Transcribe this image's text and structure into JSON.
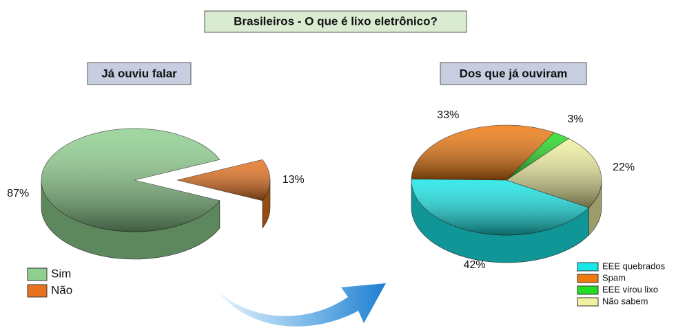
{
  "title": "Brasileiros -  O que é lixo eletrônico?",
  "chart_data": [
    {
      "type": "pie",
      "title": "Já ouviu falar",
      "categories": [
        "Sim",
        "Não"
      ],
      "values": [
        87,
        13
      ],
      "value_labels": [
        "87%",
        "13%"
      ],
      "colors": [
        "#8fcf8f",
        "#e8731f"
      ],
      "legend": "bottom-left"
    },
    {
      "type": "pie",
      "title": "Dos que já ouviram",
      "categories": [
        "EEE quebrados",
        "Spam",
        "EEE virou lixo",
        "Não sabem"
      ],
      "values": [
        42,
        33,
        3,
        22
      ],
      "value_labels": [
        "42%",
        "33%",
        "3%",
        "22%"
      ],
      "colors": [
        "#19e6e6",
        "#ee7a0f",
        "#22dd22",
        "#f0f0a0"
      ],
      "legend": "bottom-right"
    }
  ]
}
